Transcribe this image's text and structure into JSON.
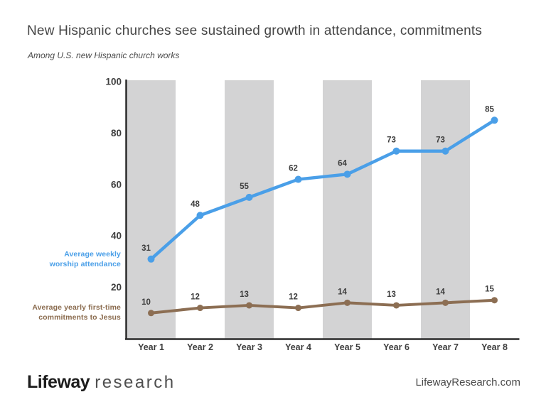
{
  "page": {
    "title": "New Hispanic churches see sustained growth in attendance, commitments",
    "subtitle": "Among U.S. new Hispanic church works",
    "background": "#ffffff"
  },
  "chart_data": {
    "type": "line",
    "categories": [
      "Year 1",
      "Year 2",
      "Year 3",
      "Year 4",
      "Year 5",
      "Year 6",
      "Year 7",
      "Year 8"
    ],
    "series": [
      {
        "name": "Average weekly worship attendance",
        "values": [
          31,
          48,
          55,
          62,
          64,
          73,
          73,
          85
        ],
        "color": "#4a9fe8",
        "line_width": 4.5,
        "point_radius": 5
      },
      {
        "name": "Average yearly first-time commitments to Jesus",
        "values": [
          10,
          12,
          13,
          12,
          14,
          13,
          14,
          15
        ],
        "color": "#8c6e53",
        "line_width": 4,
        "point_radius": 4.5
      }
    ],
    "ylim": [
      0,
      100
    ],
    "y_ticks": [
      100,
      80,
      60,
      40,
      20
    ],
    "show_point_labels": true,
    "point_label_color": "#3d3d3d",
    "tick_label_color": "#3d3d3d",
    "axis_color": "#2b2b2b",
    "banded_columns": [
      0,
      2,
      4,
      6
    ],
    "band_color": "#d3d3d4",
    "grid": false,
    "legend_position": "left-of-axis"
  },
  "side_labels": [
    {
      "lines": [
        "Average weekly",
        "worship attendance"
      ],
      "color": "#4a9fe8"
    },
    {
      "lines": [
        "Average yearly first-time",
        "commitments to Jesus"
      ],
      "color": "#8a6b4e"
    }
  ],
  "footer": {
    "logo_primary": "Lifeway",
    "logo_secondary": "research",
    "website": "LifewayResearch.com"
  }
}
